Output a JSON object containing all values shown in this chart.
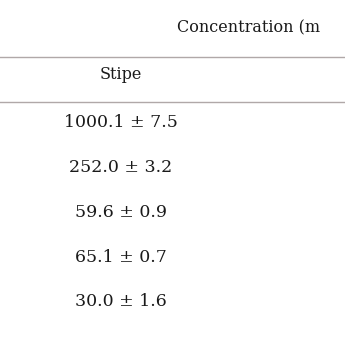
{
  "header_top": "Concentration (m",
  "col_header": "Stipe",
  "values": [
    "1000.1 ± 7.5",
    "252.0 ± 3.2",
    "59.6 ± 0.9",
    "65.1 ± 0.7",
    "30.0 ± 1.6"
  ],
  "bg_color": "#ffffff",
  "line_color": "#b0a8a8",
  "text_color": "#1a1a1a",
  "header_fontsize": 11.5,
  "col_header_fontsize": 11.5,
  "value_fontsize": 12.5,
  "fig_width": 3.45,
  "fig_height": 3.45,
  "dpi": 100
}
